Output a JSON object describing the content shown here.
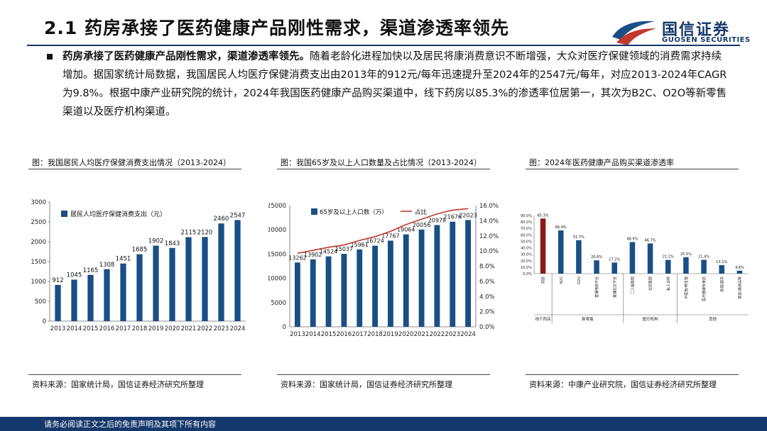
{
  "page": {
    "title": "2.1 药房承接了医药健康产品刚性需求，渠道渗透率领先",
    "bullet_lead": "药房承接了医药健康产品刚性需求，渠道渗透率领先。",
    "bullet_text": "随着老龄化进程加快以及居民将康消费意识不断增强，大众对医疗保健领域的消费需求持续增加。据国家统计局数据，我国居民人均医疗保健消费支出由2013年的912元/每年迅速提升至2024年的2547元/每年，对应2013-2024年CAGR为9.8%。根据中康产业研究院的统计，2024年我国医药健康产品购买渠道中，线下药房以85.3%的渗透率位居第一，其次为B2C、O2O等新零售渠道以及医疗机构渠道。"
  },
  "logo": {
    "cn": "国信证券",
    "en": "GUOSEN SECURITIES"
  },
  "colors": {
    "navy": "#14386b",
    "bar_blue": "#1a4f86",
    "bar_red": "#8b1a1a",
    "line_red": "#c0392b"
  },
  "footer": {
    "text": "请务必阅读正文之后的免责声明及其项下所有内容"
  },
  "panels": [
    {
      "title": "图：我国居民人均医疗保健消费支出情况（2013-2024）",
      "source": "资料来源：国家统计局，国信证券经济研究所整理"
    },
    {
      "title": "图：我国65岁及以上人口数量及占比情况（2013-2024）",
      "source": "资料来源：国家统计局，国信证券经济研究所整理"
    },
    {
      "title": "图：2024年医药健康产品购买渠道渗透率",
      "source": "资料来源：中康产业研究院，国信证券经济研究所整理"
    }
  ],
  "chart_data": [
    {
      "type": "bar",
      "categories": [
        "2013",
        "2014",
        "2015",
        "2016",
        "2017",
        "2018",
        "2019",
        "2020",
        "2021",
        "2022",
        "2023",
        "2024"
      ],
      "series": [
        {
          "name": "居民人均医疗保健消费支出（元）",
          "values": [
            912,
            1045,
            1165,
            1308,
            1451,
            1685,
            1902,
            1843,
            2115,
            2120,
            2460,
            2547
          ]
        }
      ],
      "ylim": [
        0,
        3000
      ],
      "yticks": [
        0,
        500,
        1000,
        1500,
        2000,
        2500,
        3000
      ],
      "legend": "top-left"
    },
    {
      "type": "bar",
      "categories": [
        "2013",
        "2014",
        "2015",
        "2016",
        "2017",
        "2018",
        "2019",
        "2020",
        "2021",
        "2022",
        "2023",
        "2024"
      ],
      "series": [
        {
          "name": "65岁及以上人口数（万）",
          "values": [
            13262,
            13902,
            14524,
            15037,
            15961,
            16724,
            17767,
            19064,
            20056,
            20978,
            21676,
            22023
          ]
        },
        {
          "name": "占比",
          "type": "line",
          "axis": "right",
          "values": [
            9.7,
            10.1,
            10.5,
            10.8,
            11.4,
            11.9,
            12.6,
            13.5,
            14.2,
            14.9,
            15.4,
            15.6
          ]
        }
      ],
      "ylim": [
        0,
        25000
      ],
      "yticks": [
        0,
        5000,
        10000,
        15000,
        20000,
        25000
      ],
      "y2lim": [
        0,
        16
      ],
      "y2ticks": [
        "0.0%",
        "2.0%",
        "4.0%",
        "6.0%",
        "8.0%",
        "10.0%",
        "12.0%",
        "14.0%",
        "16.0%"
      ],
      "legend": "top"
    },
    {
      "type": "bar",
      "categories": [
        "药房",
        "B2C",
        "O2O",
        "直播电商平台",
        "直播社交平台",
        "二三级医院",
        "社区医院",
        "私人诊所",
        "中医馆/养生馆",
        "医疗器械专卖店",
        "商超/超市",
        "美容/美体店等"
      ],
      "groups": [
        {
          "name": "线下药店",
          "count": 1
        },
        {
          "name": "新零售",
          "count": 4
        },
        {
          "name": "医疗机构",
          "count": 3
        },
        {
          "name": "其他",
          "count": 4
        }
      ],
      "series": [
        {
          "name": "渗透率",
          "values": [
            85.3,
            66.9,
            51.7,
            20.6,
            17.2,
            48.9,
            46.7,
            21.2,
            25.5,
            21.4,
            13.1,
            4.6
          ]
        }
      ],
      "value_labels": [
        "85.3%",
        "66.9%",
        "51.7%",
        "20.6%",
        "17.2%",
        "48.9%",
        "46.7%",
        "21.2%",
        "25.5%",
        "21.4%",
        "13.1%",
        "4.6%"
      ],
      "ylim": [
        0,
        90
      ],
      "yticks": [
        "0.0%",
        "10.0%",
        "20.0%",
        "30.0%",
        "40.0%",
        "50.0%",
        "60.0%",
        "70.0%",
        "80.0%",
        "90.0%"
      ]
    }
  ]
}
